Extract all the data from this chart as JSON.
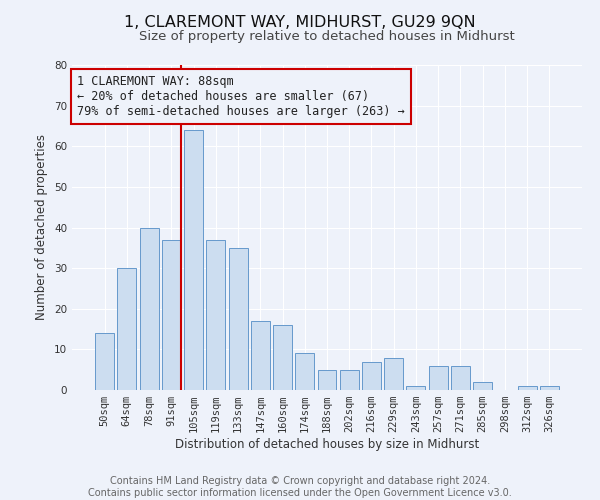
{
  "title": "1, CLAREMONT WAY, MIDHURST, GU29 9QN",
  "subtitle": "Size of property relative to detached houses in Midhurst",
  "xlabel": "Distribution of detached houses by size in Midhurst",
  "ylabel": "Number of detached properties",
  "bin_labels": [
    "50sqm",
    "64sqm",
    "78sqm",
    "91sqm",
    "105sqm",
    "119sqm",
    "133sqm",
    "147sqm",
    "160sqm",
    "174sqm",
    "188sqm",
    "202sqm",
    "216sqm",
    "229sqm",
    "243sqm",
    "257sqm",
    "271sqm",
    "285sqm",
    "298sqm",
    "312sqm",
    "326sqm"
  ],
  "bar_values": [
    14,
    30,
    40,
    37,
    64,
    37,
    35,
    17,
    16,
    9,
    5,
    5,
    7,
    8,
    1,
    6,
    6,
    2,
    0,
    1,
    1
  ],
  "bar_color": "#ccddf0",
  "bar_edge_color": "#6699cc",
  "vline_color": "#cc0000",
  "annotation_title": "1 CLAREMONT WAY: 88sqm",
  "annotation_line1": "← 20% of detached houses are smaller (67)",
  "annotation_line2": "79% of semi-detached houses are larger (263) →",
  "annotation_box_edge": "#cc0000",
  "ylim": [
    0,
    80
  ],
  "yticks": [
    0,
    10,
    20,
    30,
    40,
    50,
    60,
    70,
    80
  ],
  "footer_line1": "Contains HM Land Registry data © Crown copyright and database right 2024.",
  "footer_line2": "Contains public sector information licensed under the Open Government Licence v3.0.",
  "background_color": "#eef2fa",
  "grid_color": "#ffffff",
  "title_fontsize": 11.5,
  "subtitle_fontsize": 9.5,
  "axis_label_fontsize": 8.5,
  "tick_fontsize": 7.5,
  "footer_fontsize": 7,
  "annotation_fontsize": 8.5
}
